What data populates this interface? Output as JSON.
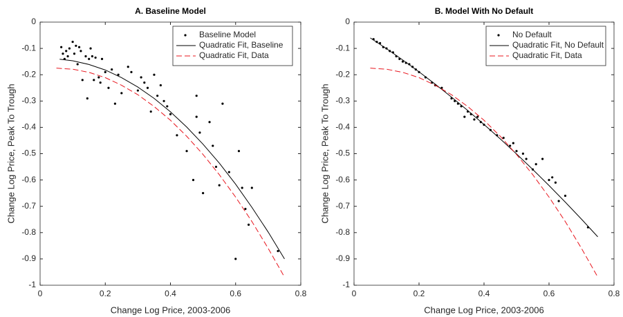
{
  "chart_data": [
    {
      "type": "scatter",
      "title": "A. Baseline Model",
      "xlabel": "Change Log Price, 2003-2006",
      "ylabel": "Change Log Price, Peak To Trough",
      "xlim": [
        0,
        0.8
      ],
      "ylim": [
        -1,
        0
      ],
      "xticks": [
        0,
        0.2,
        0.4,
        0.6,
        0.8
      ],
      "yticks": [
        0,
        -0.1,
        -0.2,
        -0.3,
        -0.4,
        -0.5,
        -0.6,
        -0.7,
        -0.8,
        -0.9,
        -1
      ],
      "legend": "northeast",
      "series": [
        {
          "name": "Baseline Model",
          "color": "#000000",
          "style": "markers",
          "x": [
            0.065,
            0.07,
            0.075,
            0.08,
            0.085,
            0.09,
            0.1,
            0.105,
            0.11,
            0.115,
            0.12,
            0.125,
            0.13,
            0.14,
            0.145,
            0.15,
            0.155,
            0.16,
            0.165,
            0.17,
            0.18,
            0.185,
            0.19,
            0.2,
            0.21,
            0.22,
            0.23,
            0.24,
            0.25,
            0.27,
            0.28,
            0.3,
            0.31,
            0.32,
            0.33,
            0.34,
            0.35,
            0.36,
            0.37,
            0.38,
            0.39,
            0.4,
            0.42,
            0.45,
            0.47,
            0.48,
            0.48,
            0.49,
            0.5,
            0.52,
            0.53,
            0.54,
            0.55,
            0.56,
            0.58,
            0.6,
            0.61,
            0.62,
            0.63,
            0.64,
            0.65,
            0.73
          ],
          "values": [
            -0.095,
            -0.12,
            -0.14,
            -0.11,
            -0.13,
            -0.1,
            -0.075,
            -0.12,
            -0.09,
            -0.16,
            -0.095,
            -0.11,
            -0.22,
            -0.13,
            -0.29,
            -0.14,
            -0.1,
            -0.13,
            -0.22,
            -0.135,
            -0.21,
            -0.23,
            -0.14,
            -0.19,
            -0.25,
            -0.18,
            -0.31,
            -0.2,
            -0.27,
            -0.17,
            -0.19,
            -0.26,
            -0.21,
            -0.23,
            -0.25,
            -0.34,
            -0.2,
            -0.28,
            -0.24,
            -0.3,
            -0.32,
            -0.35,
            -0.43,
            -0.49,
            -0.6,
            -0.36,
            -0.28,
            -0.42,
            -0.65,
            -0.38,
            -0.47,
            -0.55,
            -0.62,
            -0.31,
            -0.57,
            -0.9,
            -0.49,
            -0.63,
            -0.71,
            -0.77,
            -0.63,
            -0.87
          ]
        },
        {
          "name": "Quadratic Fit, Baseline",
          "color": "#000000",
          "style": "solid",
          "x": [
            0.06,
            0.1,
            0.15,
            0.2,
            0.25,
            0.3,
            0.35,
            0.4,
            0.45,
            0.5,
            0.55,
            0.6,
            0.65,
            0.7,
            0.75
          ],
          "values": [
            -0.141,
            -0.147,
            -0.161,
            -0.182,
            -0.211,
            -0.247,
            -0.29,
            -0.341,
            -0.399,
            -0.464,
            -0.536,
            -0.616,
            -0.704,
            -0.798,
            -0.9
          ]
        },
        {
          "name": "Quadratic Fit, Data",
          "color": "#e8141c",
          "style": "dashed",
          "x": [
            0.05,
            0.1,
            0.15,
            0.2,
            0.25,
            0.3,
            0.35,
            0.4,
            0.45,
            0.5,
            0.55,
            0.6,
            0.65,
            0.7,
            0.75
          ],
          "values": [
            -0.175,
            -0.179,
            -0.191,
            -0.211,
            -0.24,
            -0.276,
            -0.321,
            -0.373,
            -0.434,
            -0.503,
            -0.58,
            -0.665,
            -0.758,
            -0.86,
            -0.969
          ]
        }
      ]
    },
    {
      "type": "scatter",
      "title": "B. Model With No Default",
      "xlabel": "Change Log Price, 2003-2006",
      "ylabel": "Change Log Price, Peak To Trough",
      "xlim": [
        0,
        0.8
      ],
      "ylim": [
        -1,
        0
      ],
      "xticks": [
        0,
        0.2,
        0.4,
        0.6,
        0.8
      ],
      "yticks": [
        0,
        -0.1,
        -0.2,
        -0.3,
        -0.4,
        -0.5,
        -0.6,
        -0.7,
        -0.8,
        -0.9,
        -1
      ],
      "legend": "northeast",
      "series": [
        {
          "name": "No Default",
          "color": "#000000",
          "style": "markers",
          "x": [
            0.06,
            0.07,
            0.08,
            0.09,
            0.1,
            0.11,
            0.12,
            0.13,
            0.14,
            0.15,
            0.16,
            0.17,
            0.18,
            0.19,
            0.2,
            0.22,
            0.24,
            0.25,
            0.27,
            0.3,
            0.31,
            0.32,
            0.33,
            0.34,
            0.35,
            0.36,
            0.37,
            0.38,
            0.39,
            0.4,
            0.42,
            0.44,
            0.46,
            0.48,
            0.49,
            0.5,
            0.52,
            0.53,
            0.55,
            0.56,
            0.58,
            0.6,
            0.61,
            0.62,
            0.63,
            0.65,
            0.72
          ],
          "values": [
            -0.065,
            -0.075,
            -0.08,
            -0.095,
            -0.1,
            -0.11,
            -0.115,
            -0.13,
            -0.14,
            -0.15,
            -0.155,
            -0.16,
            -0.17,
            -0.18,
            -0.19,
            -0.21,
            -0.23,
            -0.24,
            -0.25,
            -0.29,
            -0.3,
            -0.31,
            -0.32,
            -0.36,
            -0.34,
            -0.35,
            -0.37,
            -0.36,
            -0.38,
            -0.39,
            -0.41,
            -0.43,
            -0.44,
            -0.47,
            -0.46,
            -0.49,
            -0.5,
            -0.52,
            -0.56,
            -0.54,
            -0.52,
            -0.6,
            -0.59,
            -0.61,
            -0.68,
            -0.66,
            -0.78
          ]
        },
        {
          "name": "Quadratic Fit, No Default",
          "color": "#000000",
          "style": "solid",
          "x": [
            0.05,
            0.1,
            0.15,
            0.2,
            0.25,
            0.3,
            0.35,
            0.4,
            0.45,
            0.5,
            0.55,
            0.6,
            0.65,
            0.7,
            0.75
          ],
          "values": [
            -0.06,
            -0.101,
            -0.144,
            -0.189,
            -0.236,
            -0.285,
            -0.336,
            -0.389,
            -0.444,
            -0.501,
            -0.56,
            -0.621,
            -0.684,
            -0.749,
            -0.816
          ]
        },
        {
          "name": "Quadratic Fit, Data",
          "color": "#e8141c",
          "style": "dashed",
          "x": [
            0.05,
            0.1,
            0.15,
            0.2,
            0.25,
            0.3,
            0.35,
            0.4,
            0.45,
            0.5,
            0.55,
            0.6,
            0.65,
            0.7,
            0.75
          ],
          "values": [
            -0.175,
            -0.179,
            -0.191,
            -0.211,
            -0.24,
            -0.276,
            -0.321,
            -0.373,
            -0.434,
            -0.503,
            -0.58,
            -0.665,
            -0.758,
            -0.86,
            -0.969
          ]
        }
      ]
    }
  ]
}
